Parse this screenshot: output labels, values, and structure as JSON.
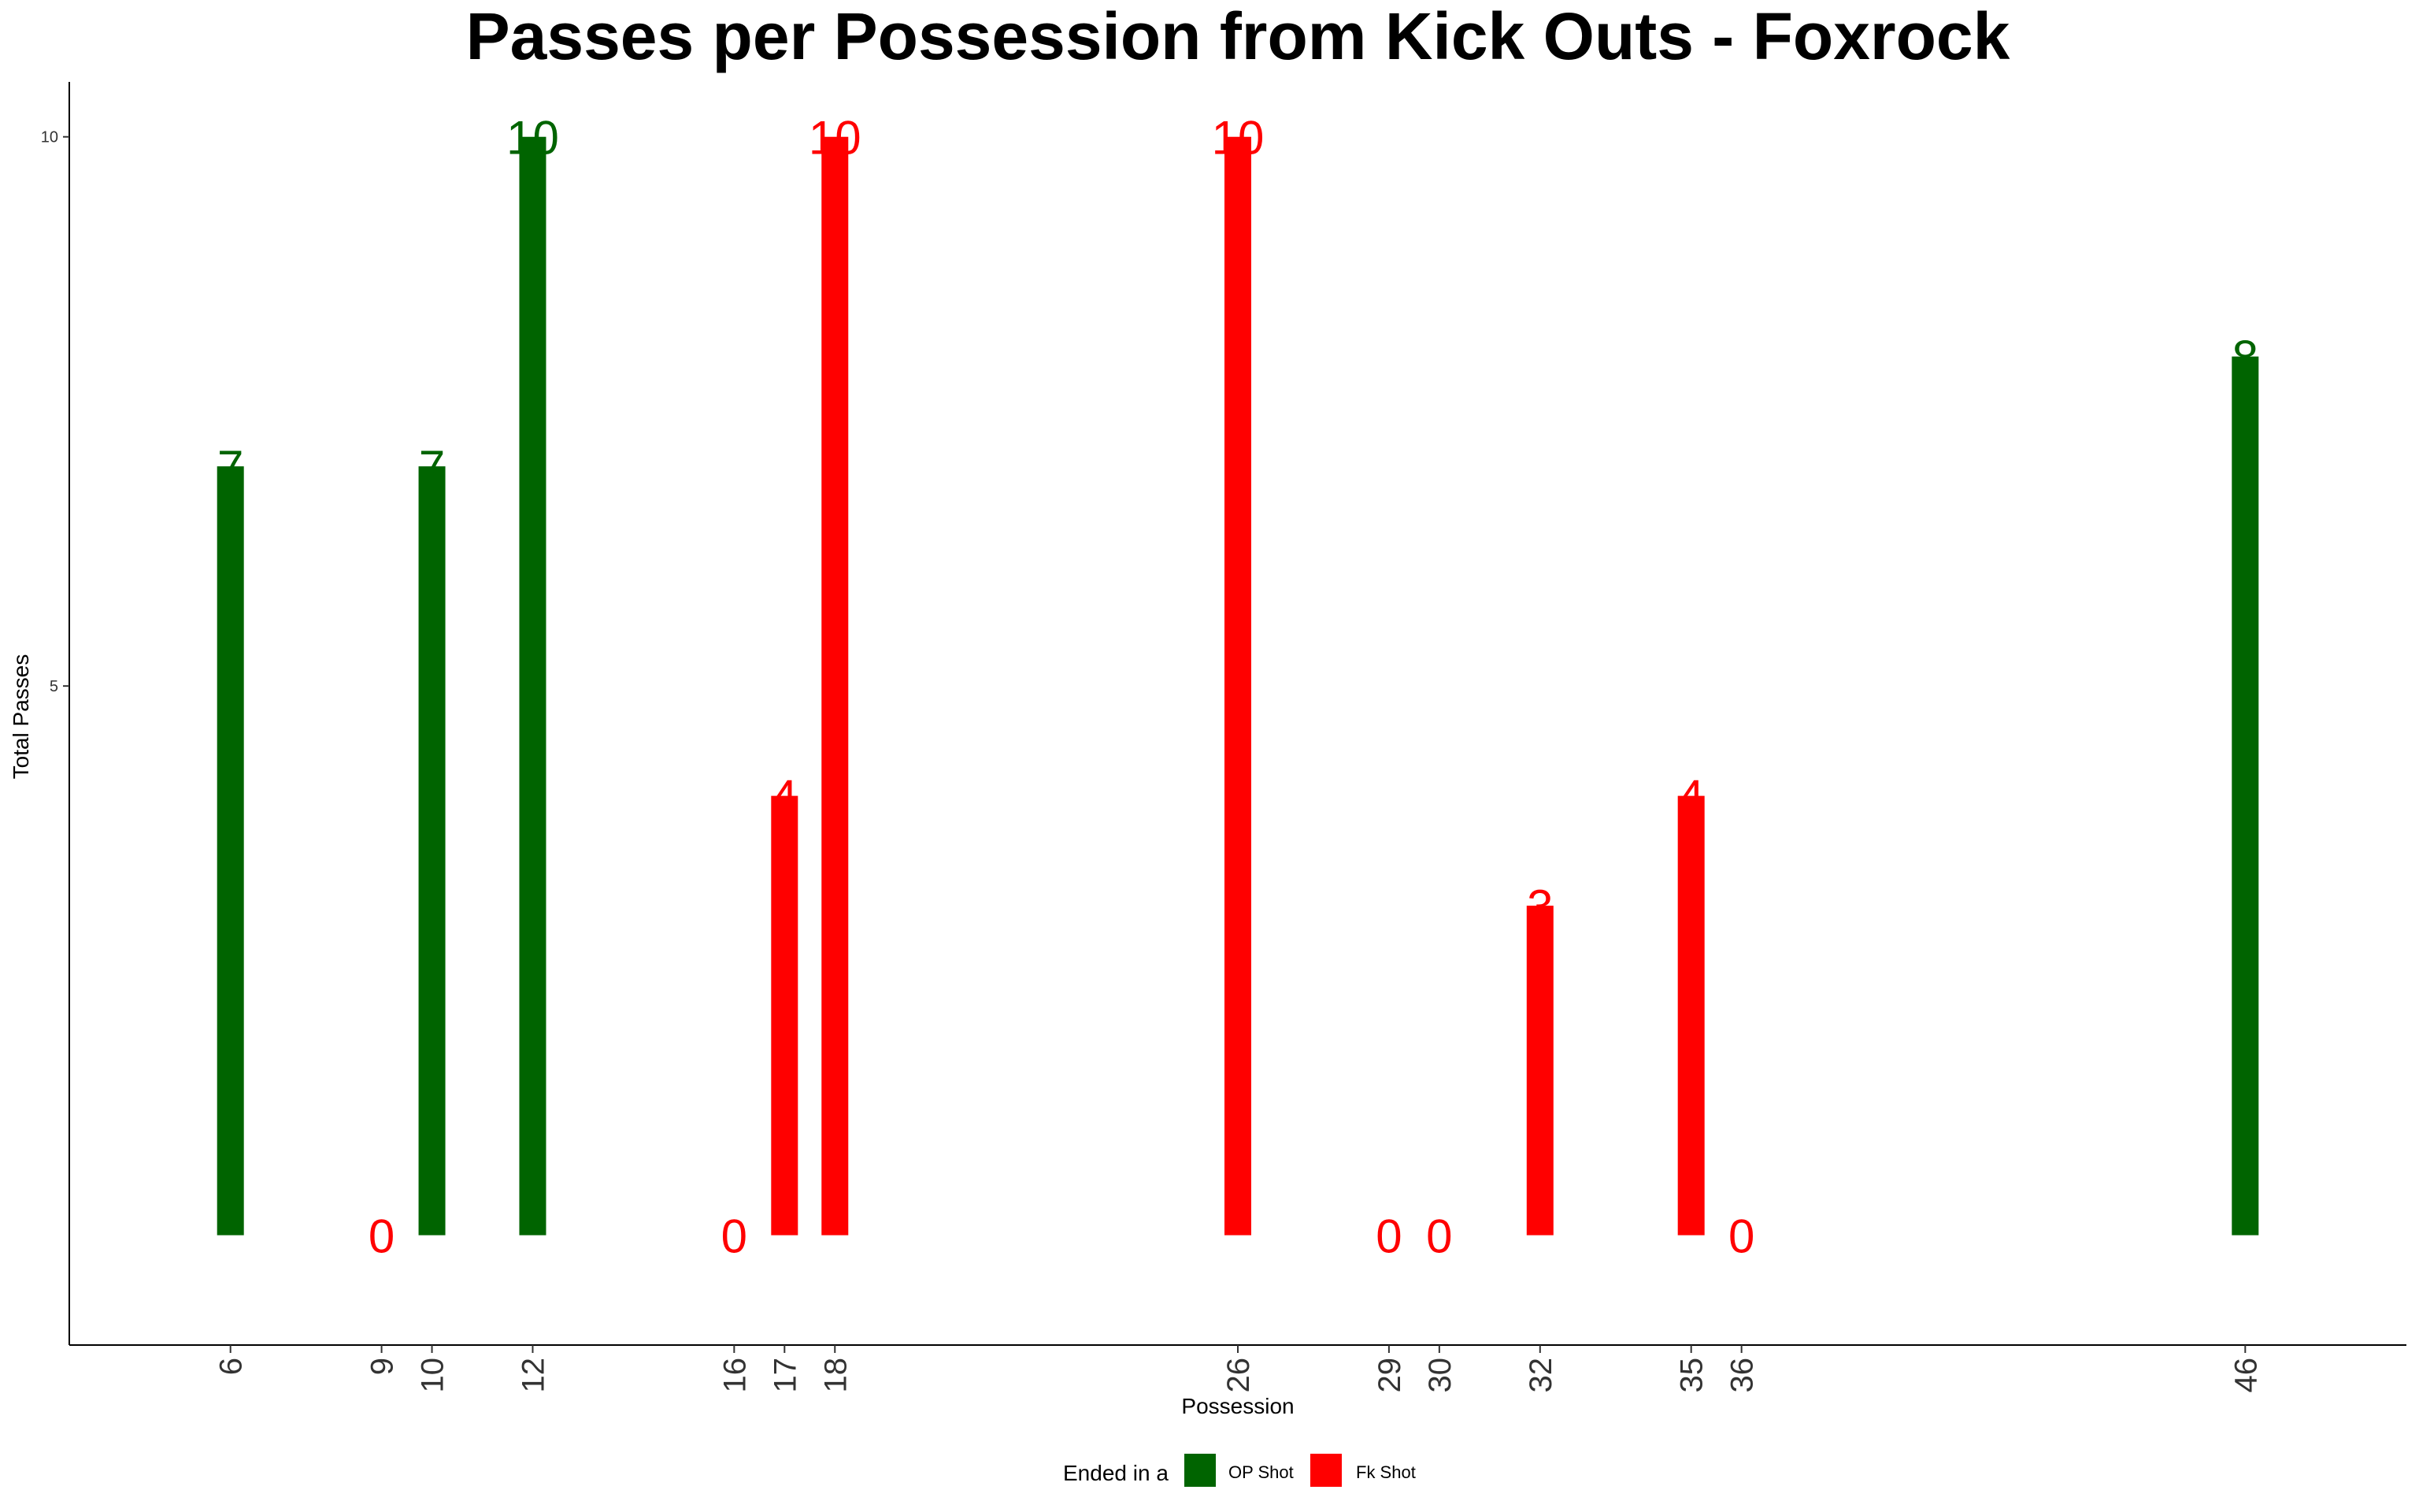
{
  "chart_data": {
    "type": "bar",
    "title": "Passes per Possession from Kick Outs - Foxrock",
    "xlabel": "Possession",
    "ylabel": "Total Passes",
    "x_domain": [
      2.8,
      49.2
    ],
    "y_domain": [
      -1.0,
      10.5
    ],
    "y_ticks": [
      5,
      10
    ],
    "grid": false,
    "legend": {
      "title": "Ended in a",
      "position": "bottom",
      "entries": [
        {
          "key": "OP",
          "label": "OP Shot",
          "color": "#006400"
        },
        {
          "key": "FK",
          "label": "Fk Shot",
          "color": "#ff0000"
        }
      ]
    },
    "points": [
      {
        "x": 6,
        "value": 7,
        "outcome": "OP"
      },
      {
        "x": 9,
        "value": 0,
        "outcome": "FK"
      },
      {
        "x": 10,
        "value": 7,
        "outcome": "OP"
      },
      {
        "x": 12,
        "value": 10,
        "outcome": "OP"
      },
      {
        "x": 16,
        "value": 0,
        "outcome": "FK"
      },
      {
        "x": 17,
        "value": 4,
        "outcome": "FK"
      },
      {
        "x": 18,
        "value": 10,
        "outcome": "FK"
      },
      {
        "x": 26,
        "value": 10,
        "outcome": "FK"
      },
      {
        "x": 29,
        "value": 0,
        "outcome": "FK"
      },
      {
        "x": 30,
        "value": 0,
        "outcome": "FK"
      },
      {
        "x": 32,
        "value": 3,
        "outcome": "FK"
      },
      {
        "x": 35,
        "value": 4,
        "outcome": "FK"
      },
      {
        "x": 36,
        "value": 0,
        "outcome": "FK"
      },
      {
        "x": 46,
        "value": 8,
        "outcome": "OP"
      }
    ]
  }
}
